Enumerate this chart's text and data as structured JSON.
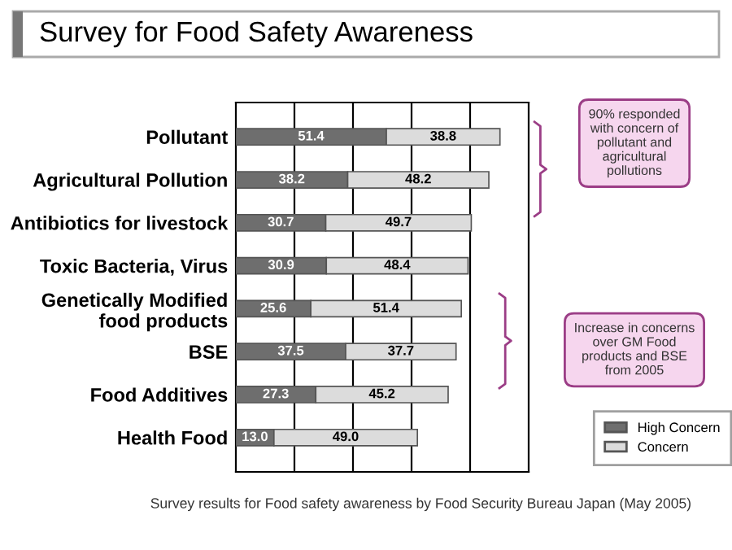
{
  "chart_data": {
    "type": "bar",
    "orientation": "horizontal",
    "stacked": true,
    "title": "Survey for Food Safety Awareness",
    "categories": [
      "Pollutant",
      "Agricultural Pollution",
      "Antibiotics for livestock",
      "Toxic Bacteria, Virus",
      "Genetically Modified\nfood products",
      "BSE",
      "Food Additives",
      "Health Food"
    ],
    "series": [
      {
        "name": "High Concern",
        "color": "#6e6e6e",
        "values": [
          51.4,
          38.2,
          30.7,
          30.9,
          25.6,
          37.5,
          27.3,
          13.0
        ],
        "value_labels": [
          "51.4",
          "38.2",
          "30.7",
          "30.9",
          "25.6",
          "37.5",
          "27.3",
          "13.0"
        ]
      },
      {
        "name": "Concern",
        "color": "#dcdcdc",
        "values": [
          38.8,
          48.2,
          49.7,
          48.4,
          51.4,
          37.7,
          45.2,
          49.0
        ],
        "value_labels": [
          "38.8",
          "48.2",
          "49.7",
          "48.4",
          "51.4",
          "37.7",
          "45.2",
          "49.0"
        ]
      }
    ],
    "xlim": [
      0,
      100
    ],
    "xticks": [
      {
        "value": 20,
        "label": null
      },
      {
        "value": 40,
        "label": null
      },
      {
        "value": 60,
        "label": null
      },
      {
        "value": 80,
        "label": null
      }
    ],
    "tick_labels": "y",
    "grid": "x",
    "legend": "bottom right",
    "annotations": [
      "90% responded\nwith concern of\npollutant and\nagricultural\npollutions",
      "Increase in concerns\nover GM Food\nproducts and BSE\nfrom 2005",
      "Survey results for Food safety awareness by Food Security Bureau Japan (May 2005)"
    ]
  }
}
